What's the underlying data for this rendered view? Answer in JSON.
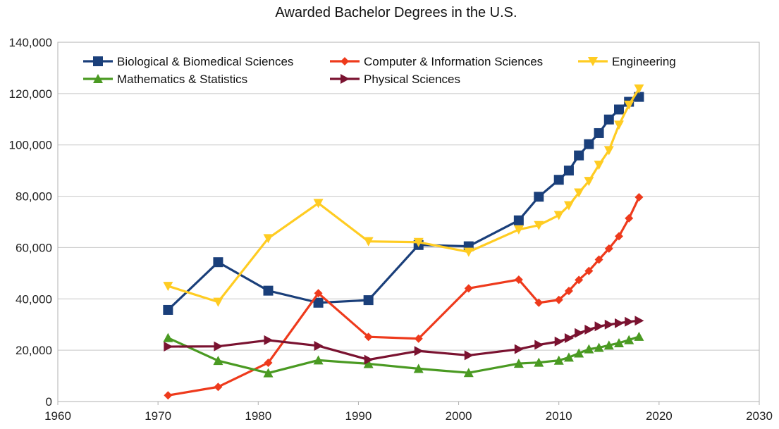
{
  "chart_data": {
    "type": "line",
    "title": "Awarded Bachelor Degrees in the U.S.",
    "xlabel": "",
    "ylabel": "",
    "xlim": [
      1960,
      2030
    ],
    "ylim": [
      0,
      140000
    ],
    "xticks": [
      1960,
      1970,
      1980,
      1990,
      2000,
      2010,
      2020,
      2030
    ],
    "yticks": [
      0,
      20000,
      40000,
      60000,
      80000,
      100000,
      120000,
      140000
    ],
    "ytick_labels": [
      "0",
      "20,000",
      "40,000",
      "60,000",
      "80,000",
      "100,000",
      "120,000",
      "140,000"
    ],
    "grid": "horizontal",
    "legend_position": "top",
    "series": [
      {
        "name": "Biological & Biomedical Sciences",
        "color": "#1a3f7a",
        "marker": "square",
        "x": [
          1971,
          1976,
          1981,
          1986,
          1991,
          1996,
          2001,
          2006,
          2008,
          2010,
          2011,
          2012,
          2013,
          2014,
          2015,
          2016,
          2017,
          2018
        ],
        "values": [
          35700,
          54300,
          43200,
          38500,
          39500,
          61000,
          60500,
          70600,
          79800,
          86400,
          90000,
          95900,
          100300,
          104600,
          109900,
          113800,
          116800,
          118700
        ]
      },
      {
        "name": "Computer & Information Sciences",
        "color": "#ee3a1c",
        "marker": "diamond",
        "x": [
          1971,
          1976,
          1981,
          1986,
          1991,
          1996,
          2001,
          2006,
          2008,
          2010,
          2011,
          2012,
          2013,
          2014,
          2015,
          2016,
          2017,
          2018
        ],
        "values": [
          2400,
          5700,
          15100,
          42200,
          25200,
          24500,
          44100,
          47500,
          38500,
          39600,
          43100,
          47400,
          50900,
          55300,
          59600,
          64400,
          71400,
          79600
        ]
      },
      {
        "name": "Engineering",
        "color": "#ffcc22",
        "marker": "triangle-down",
        "x": [
          1971,
          1976,
          1981,
          1986,
          1991,
          1996,
          2001,
          2006,
          2008,
          2010,
          2011,
          2012,
          2013,
          2014,
          2015,
          2016,
          2017,
          2018
        ],
        "values": [
          45000,
          38800,
          63600,
          77300,
          62400,
          62100,
          58300,
          67000,
          68700,
          72600,
          76400,
          81400,
          85900,
          92200,
          97900,
          107800,
          115600,
          121900
        ]
      },
      {
        "name": "Mathematics & Statistics",
        "color": "#4a9a22",
        "marker": "triangle-up",
        "x": [
          1971,
          1976,
          1981,
          1986,
          1991,
          1996,
          2001,
          2006,
          2008,
          2010,
          2011,
          2012,
          2013,
          2014,
          2015,
          2016,
          2017,
          2018
        ],
        "values": [
          24800,
          15900,
          11100,
          16100,
          14700,
          12800,
          11200,
          14800,
          15200,
          16000,
          17200,
          18800,
          20400,
          21000,
          21900,
          22800,
          24000,
          25300
        ]
      },
      {
        "name": "Physical Sciences",
        "color": "#7a1230",
        "marker": "triangle-right",
        "x": [
          1971,
          1976,
          1981,
          1986,
          1991,
          1996,
          2001,
          2006,
          2008,
          2010,
          2011,
          2012,
          2013,
          2014,
          2015,
          2016,
          2017,
          2018
        ],
        "values": [
          21400,
          21500,
          23900,
          21700,
          16300,
          19700,
          18000,
          20400,
          22100,
          23400,
          24700,
          26700,
          28000,
          29300,
          30000,
          30500,
          31100,
          31500
        ]
      }
    ]
  }
}
